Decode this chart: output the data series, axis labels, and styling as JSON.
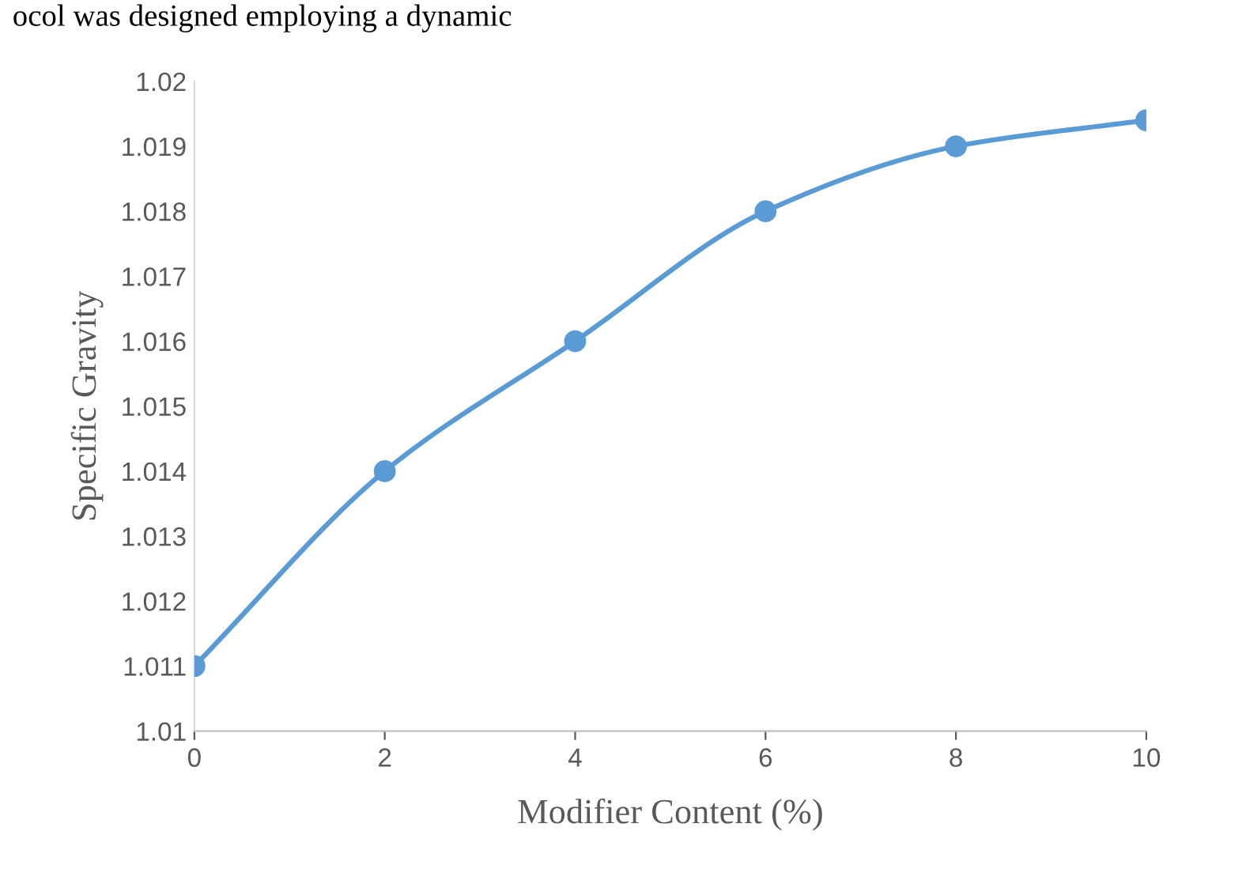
{
  "chart_data": {
    "type": "line",
    "xlabel": "Modifier Content (%)",
    "ylabel": "Specific Gravity",
    "annotations": [
      "ocol was designed employing a dynamic"
    ],
    "x": [
      0,
      2,
      4,
      6,
      8,
      10
    ],
    "series": [
      {
        "color": "#5b9bd5",
        "values": [
          1.011,
          1.014,
          1.016,
          1.018,
          1.019,
          1.0194
        ]
      }
    ],
    "xlim": [
      0,
      10
    ],
    "xticks": [
      0,
      2,
      4,
      6,
      8,
      10
    ],
    "ylim": [
      1.01,
      1.02
    ],
    "yticks": [
      1.01,
      1.011,
      1.012,
      1.013,
      1.014,
      1.015,
      1.016,
      1.017,
      1.018,
      1.019,
      1.02
    ],
    "grid": false,
    "legend": false,
    "marker": "circle",
    "line_style": "solid"
  }
}
